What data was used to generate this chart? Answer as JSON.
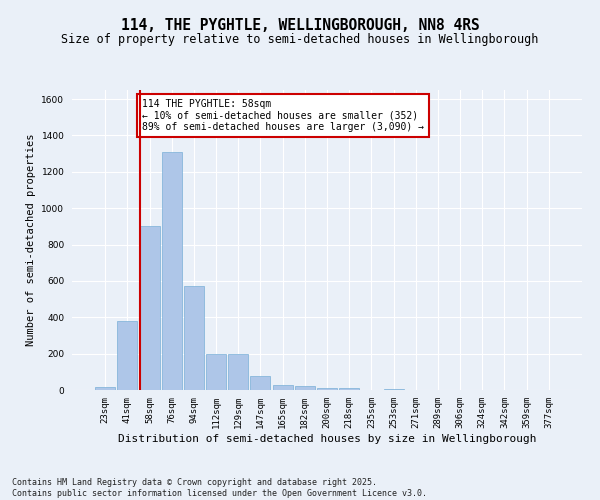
{
  "title": "114, THE PYGHTLE, WELLINGBOROUGH, NN8 4RS",
  "subtitle": "Size of property relative to semi-detached houses in Wellingborough",
  "xlabel": "Distribution of semi-detached houses by size in Wellingborough",
  "ylabel": "Number of semi-detached properties",
  "categories": [
    "23sqm",
    "41sqm",
    "58sqm",
    "76sqm",
    "94sqm",
    "112sqm",
    "129sqm",
    "147sqm",
    "165sqm",
    "182sqm",
    "200sqm",
    "218sqm",
    "235sqm",
    "253sqm",
    "271sqm",
    "289sqm",
    "306sqm",
    "324sqm",
    "342sqm",
    "359sqm",
    "377sqm"
  ],
  "values": [
    15,
    380,
    900,
    1310,
    570,
    200,
    200,
    75,
    25,
    20,
    10,
    10,
    0,
    8,
    0,
    0,
    0,
    0,
    0,
    0,
    0
  ],
  "bar_color": "#aec6e8",
  "bar_edge_color": "#7ab0d8",
  "highlight_index": 2,
  "highlight_line_color": "#cc0000",
  "annotation_text": "114 THE PYGHTLE: 58sqm\n← 10% of semi-detached houses are smaller (352)\n89% of semi-detached houses are larger (3,090) →",
  "annotation_box_color": "#ffffff",
  "annotation_box_edge_color": "#cc0000",
  "ylim": [
    0,
    1650
  ],
  "yticks": [
    0,
    200,
    400,
    600,
    800,
    1000,
    1200,
    1400,
    1600
  ],
  "background_color": "#eaf0f8",
  "grid_color": "#ffffff",
  "footer_text": "Contains HM Land Registry data © Crown copyright and database right 2025.\nContains public sector information licensed under the Open Government Licence v3.0.",
  "title_fontsize": 10.5,
  "subtitle_fontsize": 8.5,
  "axis_label_fontsize": 7.5,
  "tick_fontsize": 6.5,
  "annotation_fontsize": 7,
  "footer_fontsize": 6
}
